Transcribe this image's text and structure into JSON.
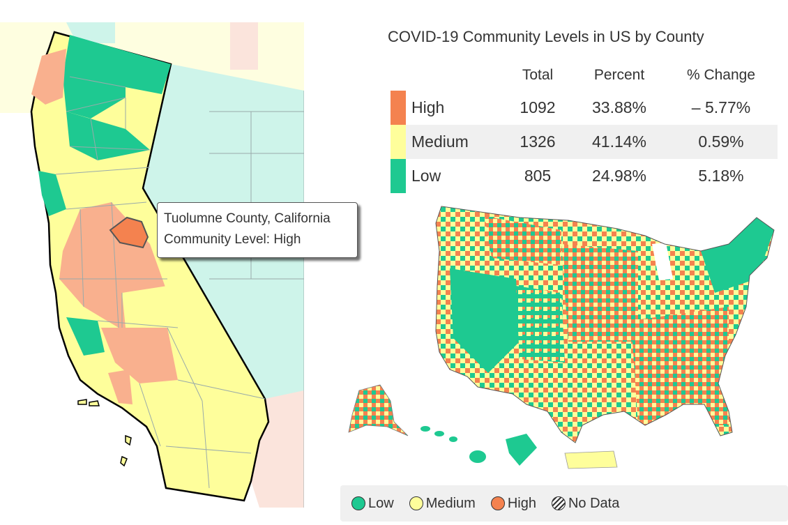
{
  "title": "COVID-19 Community Levels in US by County",
  "table": {
    "headers": {
      "total": "Total",
      "percent": "Percent",
      "change": "% Change"
    },
    "rows": [
      {
        "level": "High",
        "total": "1092",
        "percent": "33.88%",
        "change": "– 5.77%",
        "color": "#f4824f"
      },
      {
        "level": "Medium",
        "total": "1326",
        "percent": "41.14%",
        "change": "0.59%",
        "color": "#fefe9b"
      },
      {
        "level": "Low",
        "total": "805",
        "percent": "24.98%",
        "change": "5.18%",
        "color": "#1ec991"
      }
    ]
  },
  "tooltip": {
    "county": "Tuolumne County, California",
    "level_line": "Community Level: High"
  },
  "legend": [
    {
      "label": "Low",
      "color": "#1ec991"
    },
    {
      "label": "Medium",
      "color": "#fefe9b"
    },
    {
      "label": "High",
      "color": "#f4824f"
    },
    {
      "label": "No Data",
      "pattern": "hatch"
    }
  ],
  "colors": {
    "low": "#1ec991",
    "medium": "#fefe9b",
    "high": "#f4824f",
    "low_light": "#cef4ea",
    "medium_light": "#fefee0",
    "high_light": "#fbe4dc",
    "selected": "#f4824f"
  }
}
